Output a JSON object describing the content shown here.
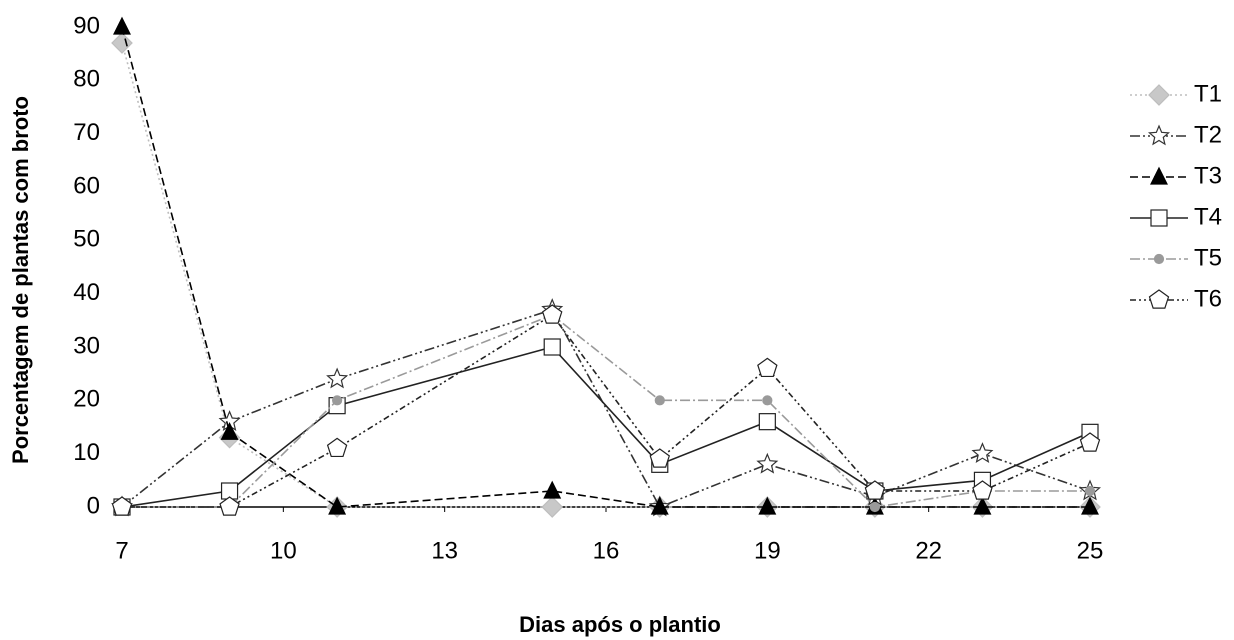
{
  "chart_data": {
    "type": "line",
    "x_label": "Dias após o plantio",
    "y_label": "Porcentagem de plantas com broto",
    "x": [
      7,
      9,
      11,
      15,
      17,
      19,
      21,
      23,
      25
    ],
    "xlim": [
      7,
      25
    ],
    "xticks": [
      7,
      10,
      13,
      16,
      19,
      22,
      25
    ],
    "ylim": [
      0,
      90
    ],
    "yticks": [
      0,
      10,
      20,
      30,
      40,
      50,
      60,
      70,
      80,
      90
    ],
    "legend": "right",
    "series": [
      {
        "name": "T1",
        "color": "#bdbdbd",
        "marker": "diamond",
        "dash": "2,3",
        "fill": "#c8c8c8",
        "values": [
          87,
          13,
          0,
          0,
          0,
          0,
          0,
          0,
          0
        ]
      },
      {
        "name": "T2",
        "color": "#333333",
        "marker": "star",
        "dash": "10,3,2,3,2,3",
        "fill": "#ffffff",
        "values": [
          0,
          16,
          24,
          37,
          0,
          8,
          2,
          10,
          3
        ]
      },
      {
        "name": "T3",
        "color": "#000000",
        "marker": "triangle",
        "dash": "8,4",
        "fill": "#000000",
        "values": [
          90,
          14,
          0,
          3,
          0,
          0,
          0,
          0,
          0
        ]
      },
      {
        "name": "T4",
        "color": "#222222",
        "marker": "square",
        "dash": "",
        "fill": "#ffffff",
        "values": [
          0,
          3,
          19,
          30,
          8,
          16,
          3,
          5,
          14
        ]
      },
      {
        "name": "T5",
        "color": "#9a9a9a",
        "marker": "circle",
        "dash": "10,3,2,3",
        "fill": "#9a9a9a",
        "values": [
          0,
          0,
          20,
          36,
          20,
          20,
          0,
          3,
          3
        ]
      },
      {
        "name": "T6",
        "color": "#222222",
        "marker": "pentagon",
        "dash": "6,3,2,3,2,3",
        "fill": "#ffffff",
        "values": [
          0,
          0,
          11,
          36,
          9,
          26,
          3,
          3,
          12
        ]
      }
    ]
  }
}
